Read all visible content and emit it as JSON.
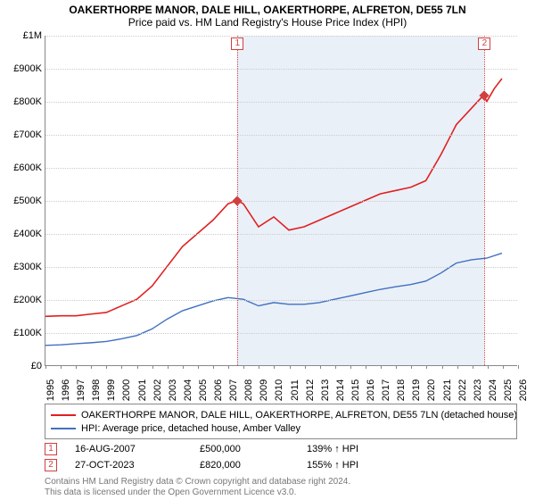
{
  "title": "OAKERTHORPE MANOR, DALE HILL, OAKERTHORPE, ALFRETON, DE55 7LN",
  "subtitle": "Price paid vs. HM Land Registry's House Price Index (HPI)",
  "chart": {
    "type": "line",
    "xlim": [
      1995,
      2026
    ],
    "ylim": [
      0,
      1000000
    ],
    "ytick_step": 100000,
    "ylabels": [
      "£0",
      "£100K",
      "£200K",
      "£300K",
      "£400K",
      "£500K",
      "£600K",
      "£700K",
      "£800K",
      "£900K",
      "£1M"
    ],
    "xticks": [
      1995,
      1996,
      1997,
      1998,
      1999,
      2000,
      2001,
      2002,
      2003,
      2004,
      2005,
      2006,
      2007,
      2008,
      2009,
      2010,
      2011,
      2012,
      2013,
      2014,
      2015,
      2016,
      2017,
      2018,
      2019,
      2020,
      2021,
      2022,
      2023,
      2024,
      2025,
      2026
    ],
    "grid_color": "#cccccc",
    "background_shade": {
      "start": 2007.6,
      "end": 2023.8,
      "color": "#eaf0f8"
    },
    "series": [
      {
        "name": "property",
        "color": "#e02020",
        "width": 1.6,
        "points": [
          [
            1995,
            148000
          ],
          [
            1996,
            150000
          ],
          [
            1997,
            150000
          ],
          [
            1998,
            155000
          ],
          [
            1999,
            160000
          ],
          [
            2000,
            180000
          ],
          [
            2001,
            200000
          ],
          [
            2002,
            240000
          ],
          [
            2003,
            300000
          ],
          [
            2004,
            360000
          ],
          [
            2005,
            400000
          ],
          [
            2006,
            440000
          ],
          [
            2007,
            490000
          ],
          [
            2007.6,
            500000
          ],
          [
            2008,
            490000
          ],
          [
            2009,
            420000
          ],
          [
            2010,
            450000
          ],
          [
            2011,
            410000
          ],
          [
            2012,
            420000
          ],
          [
            2013,
            440000
          ],
          [
            2014,
            460000
          ],
          [
            2015,
            480000
          ],
          [
            2016,
            500000
          ],
          [
            2017,
            520000
          ],
          [
            2018,
            530000
          ],
          [
            2019,
            540000
          ],
          [
            2020,
            560000
          ],
          [
            2021,
            640000
          ],
          [
            2022,
            730000
          ],
          [
            2023,
            780000
          ],
          [
            2023.8,
            820000
          ],
          [
            2024,
            800000
          ],
          [
            2024.5,
            840000
          ],
          [
            2025,
            870000
          ]
        ]
      },
      {
        "name": "hpi",
        "color": "#4070c0",
        "width": 1.4,
        "points": [
          [
            1995,
            60000
          ],
          [
            1996,
            62000
          ],
          [
            1997,
            65000
          ],
          [
            1998,
            68000
          ],
          [
            1999,
            72000
          ],
          [
            2000,
            80000
          ],
          [
            2001,
            90000
          ],
          [
            2002,
            110000
          ],
          [
            2003,
            140000
          ],
          [
            2004,
            165000
          ],
          [
            2005,
            180000
          ],
          [
            2006,
            195000
          ],
          [
            2007,
            205000
          ],
          [
            2008,
            200000
          ],
          [
            2009,
            180000
          ],
          [
            2010,
            190000
          ],
          [
            2011,
            185000
          ],
          [
            2012,
            185000
          ],
          [
            2013,
            190000
          ],
          [
            2014,
            200000
          ],
          [
            2015,
            210000
          ],
          [
            2016,
            220000
          ],
          [
            2017,
            230000
          ],
          [
            2018,
            238000
          ],
          [
            2019,
            245000
          ],
          [
            2020,
            255000
          ],
          [
            2021,
            280000
          ],
          [
            2022,
            310000
          ],
          [
            2023,
            320000
          ],
          [
            2024,
            325000
          ],
          [
            2025,
            340000
          ]
        ]
      }
    ],
    "markers": [
      {
        "n": "1",
        "x": 2007.6,
        "y": 500000
      },
      {
        "n": "2",
        "x": 2023.8,
        "y": 820000
      }
    ]
  },
  "legend": {
    "items": [
      {
        "color": "#e02020",
        "label": "OAKERTHORPE MANOR, DALE HILL, OAKERTHORPE, ALFRETON, DE55 7LN (detached house)"
      },
      {
        "color": "#4070c0",
        "label": "HPI: Average price, detached house, Amber Valley"
      }
    ]
  },
  "sales": [
    {
      "n": "1",
      "date": "16-AUG-2007",
      "price": "£500,000",
      "pct": "139% ↑ HPI"
    },
    {
      "n": "2",
      "date": "27-OCT-2023",
      "price": "£820,000",
      "pct": "155% ↑ HPI"
    }
  ],
  "footer1": "Contains HM Land Registry data © Crown copyright and database right 2024.",
  "footer2": "This data is licensed under the Open Government Licence v3.0."
}
